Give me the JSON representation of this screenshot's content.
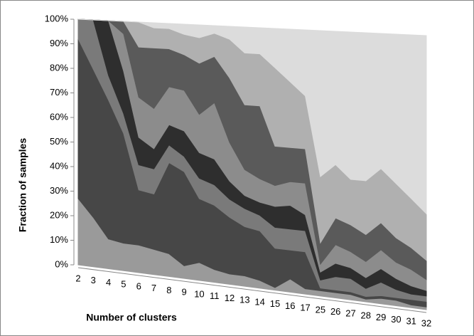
{
  "chart_data": {
    "type": "area",
    "stacked": true,
    "x_label": "Number of clusters",
    "y_label": "Fraction of samples",
    "categories": [
      "2",
      "3",
      "4",
      "5",
      "6",
      "7",
      "8",
      "9",
      "10",
      "11",
      "12",
      "13",
      "14",
      "15",
      "16",
      "17",
      "25",
      "26",
      "27",
      "28",
      "29",
      "30",
      "31",
      "32"
    ],
    "series": [
      {
        "color": "#9a9a9a",
        "values": [
          27,
          20,
          12,
          11,
          11,
          10,
          9,
          5,
          7,
          5,
          4,
          4,
          3,
          1,
          5,
          2,
          2,
          2,
          2,
          1,
          2,
          2,
          1,
          1
        ]
      },
      {
        "color": "#474747",
        "values": [
          65,
          60,
          56,
          44,
          22,
          22,
          36,
          37,
          25,
          25,
          22,
          19,
          19,
          15,
          11,
          14,
          1,
          1,
          1,
          1,
          1,
          1,
          2,
          2
        ]
      },
      {
        "color": "#7a7a7a",
        "values": [
          8,
          20,
          10,
          8,
          10,
          10,
          7,
          6,
          8,
          8,
          7,
          7,
          6,
          8,
          8,
          8,
          3,
          5,
          5,
          3,
          5,
          3,
          2,
          2
        ]
      },
      {
        "color": "#2e2e2e",
        "values": [
          0,
          0,
          22,
          17,
          11,
          8,
          8,
          10,
          10,
          10,
          7,
          5,
          5,
          8,
          9,
          6,
          3,
          5,
          4,
          4,
          5,
          4,
          3,
          2
        ]
      },
      {
        "color": "#8c8c8c",
        "values": [
          0,
          0,
          0,
          15,
          16,
          16,
          15,
          16,
          15,
          22,
          15,
          10,
          9,
          8,
          9,
          12,
          3,
          7,
          6,
          6,
          7,
          6,
          6,
          4
        ]
      },
      {
        "color": "#5a5a5a",
        "values": [
          0,
          0,
          0,
          5,
          20,
          24,
          15,
          14,
          20,
          18,
          25,
          25,
          28,
          15,
          13,
          13,
          8,
          10,
          10,
          10,
          10,
          9,
          8,
          7
        ]
      },
      {
        "color": "#b0b0b0",
        "values": [
          0,
          0,
          0,
          0,
          10,
          8,
          8,
          8,
          10,
          9,
          15,
          20,
          20,
          30,
          25,
          20,
          25,
          20,
          17,
          20,
          20,
          20,
          18,
          17
        ]
      },
      {
        "color": "#dcdcdc",
        "values": [
          0,
          0,
          0,
          0,
          0,
          2,
          2,
          4,
          5,
          3,
          5,
          10,
          10,
          15,
          20,
          25,
          55,
          50,
          55,
          55,
          50,
          55,
          60,
          65
        ]
      }
    ],
    "ylim": [
      0,
      100
    ],
    "yticks": [
      {
        "value": 0,
        "label": "0%"
      },
      {
        "value": 10,
        "label": "10%"
      },
      {
        "value": 20,
        "label": "20%"
      },
      {
        "value": 30,
        "label": "30%"
      },
      {
        "value": 40,
        "label": "40%"
      },
      {
        "value": 50,
        "label": "50%"
      },
      {
        "value": 60,
        "label": "60%"
      },
      {
        "value": 70,
        "label": "70%"
      },
      {
        "value": 80,
        "label": "80%"
      },
      {
        "value": 90,
        "label": "90%"
      },
      {
        "value": 100,
        "label": "100%"
      }
    ]
  }
}
